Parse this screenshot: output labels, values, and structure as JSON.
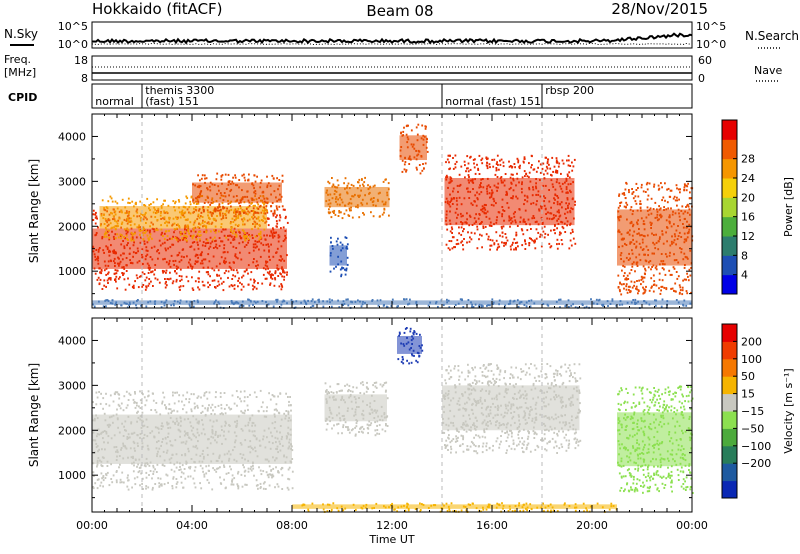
{
  "header": {
    "station": "Hokkaido (fitACF)",
    "beam": "Beam 08",
    "date": "28/Nov/2015"
  },
  "top_panels": {
    "nsky_label": "N.Sky",
    "nsearch_label": "N.Search",
    "exp_top": "10^5",
    "exp_bottom": "10^0",
    "freq_label_1": "Freq.",
    "freq_label_2": "[MHz]",
    "freq_tick_top": "18",
    "freq_tick_bottom": "8",
    "nave_label": "Nave",
    "nave_tick_top": "60",
    "nave_tick_bottom": "0",
    "cpid_label": "CPID",
    "cpid_modes": [
      {
        "text": "normal",
        "row": "bottom",
        "t": 0.05
      },
      {
        "text": "themis 3300",
        "row": "top",
        "t": 2.05
      },
      {
        "text": "(fast) 151",
        "row": "bottom",
        "t": 2.05
      },
      {
        "text": "normal (fast) 151",
        "row": "bottom",
        "t": 14.05
      },
      {
        "text": "rbsp 200",
        "row": "top",
        "t": 18.05
      }
    ],
    "cpid_switch_times": [
      2.0,
      14.0,
      18.0
    ]
  },
  "chart_data": [
    {
      "type": "heatmap",
      "name": "power",
      "ylabel": "Slant Range [km]",
      "xlabel": "",
      "ylim": [
        180,
        4500
      ],
      "xlim": [
        0,
        24
      ],
      "ytick_values": [
        1000,
        2000,
        3000,
        4000
      ],
      "ytick_labels": [
        "1000",
        "2000",
        "3000",
        "4000"
      ],
      "colorbar": {
        "label": "Power [dB]",
        "ticks": [
          "4",
          "8",
          "12",
          "16",
          "20",
          "24",
          "28"
        ],
        "colors": [
          "#0000e6",
          "#1e4fb4",
          "#2d7d6e",
          "#4cae3c",
          "#a8d632",
          "#f5d00a",
          "#f59600",
          "#f05a00",
          "#e60000"
        ]
      },
      "regions": [
        {
          "t0": 0.0,
          "t1": 7.8,
          "r0": 600,
          "r1": 2400,
          "color": "#e82a00"
        },
        {
          "t0": 0.3,
          "t1": 7.0,
          "r0": 1700,
          "r1": 2700,
          "color": "#f59a00"
        },
        {
          "t0": 4.0,
          "t1": 7.6,
          "r0": 2300,
          "r1": 3200,
          "color": "#e84a00"
        },
        {
          "t0": 9.3,
          "t1": 11.9,
          "r0": 2200,
          "r1": 3100,
          "color": "#e87000"
        },
        {
          "t0": 9.5,
          "t1": 10.2,
          "r0": 900,
          "r1": 1800,
          "color": "#1e4fb4"
        },
        {
          "t0": 12.3,
          "t1": 13.4,
          "r0": 3200,
          "r1": 4300,
          "color": "#e84a00"
        },
        {
          "t0": 14.1,
          "t1": 19.3,
          "r0": 1500,
          "r1": 3600,
          "color": "#e82a00"
        },
        {
          "t0": 21.0,
          "t1": 24.0,
          "r0": 500,
          "r1": 3000,
          "color": "#e84a00"
        },
        {
          "t0": 0.0,
          "t1": 24.0,
          "r0": 200,
          "r1": 400,
          "color": "#4a7ab8"
        }
      ]
    },
    {
      "type": "heatmap",
      "name": "velocity",
      "ylabel": "Slant Range [km]",
      "xlabel": "Time UT",
      "ylim": [
        180,
        4500
      ],
      "xlim": [
        0,
        24
      ],
      "ytick_values": [
        1000,
        2000,
        3000,
        4000
      ],
      "ytick_labels": [
        "1000",
        "2000",
        "3000",
        "4000"
      ],
      "xtick_values": [
        0,
        4,
        8,
        12,
        16,
        20,
        24
      ],
      "xtick_labels": [
        "00:00",
        "04:00",
        "08:00",
        "12:00",
        "16:00",
        "20:00",
        "00:00"
      ],
      "colorbar": {
        "label": "Velocity [m s⁻¹]",
        "ticks": [
          "200",
          "100",
          "50",
          "15",
          "−15",
          "−50",
          "−100",
          "−200"
        ],
        "colors": [
          "#0a28b4",
          "#1e5aa0",
          "#287d5a",
          "#4caa3c",
          "#8ce050",
          "#c8c8c0",
          "#f5b400",
          "#f57800",
          "#f03c00",
          "#e60000"
        ]
      },
      "regions": [
        {
          "t0": 0.0,
          "t1": 8.0,
          "r0": 700,
          "r1": 2900,
          "color": "#c8c8c0"
        },
        {
          "t0": 9.3,
          "t1": 11.8,
          "r0": 1900,
          "r1": 3100,
          "color": "#c8c8c0"
        },
        {
          "t0": 12.2,
          "t1": 13.2,
          "r0": 3500,
          "r1": 4300,
          "color": "#1e3cb4"
        },
        {
          "t0": 14.0,
          "t1": 19.5,
          "r0": 1500,
          "r1": 3500,
          "color": "#c8c8c0"
        },
        {
          "t0": 21.0,
          "t1": 24.0,
          "r0": 600,
          "r1": 3000,
          "color": "#8ce050"
        },
        {
          "t0": 8.0,
          "t1": 21.0,
          "r0": 200,
          "r1": 400,
          "color": "#f5b400"
        }
      ]
    }
  ]
}
